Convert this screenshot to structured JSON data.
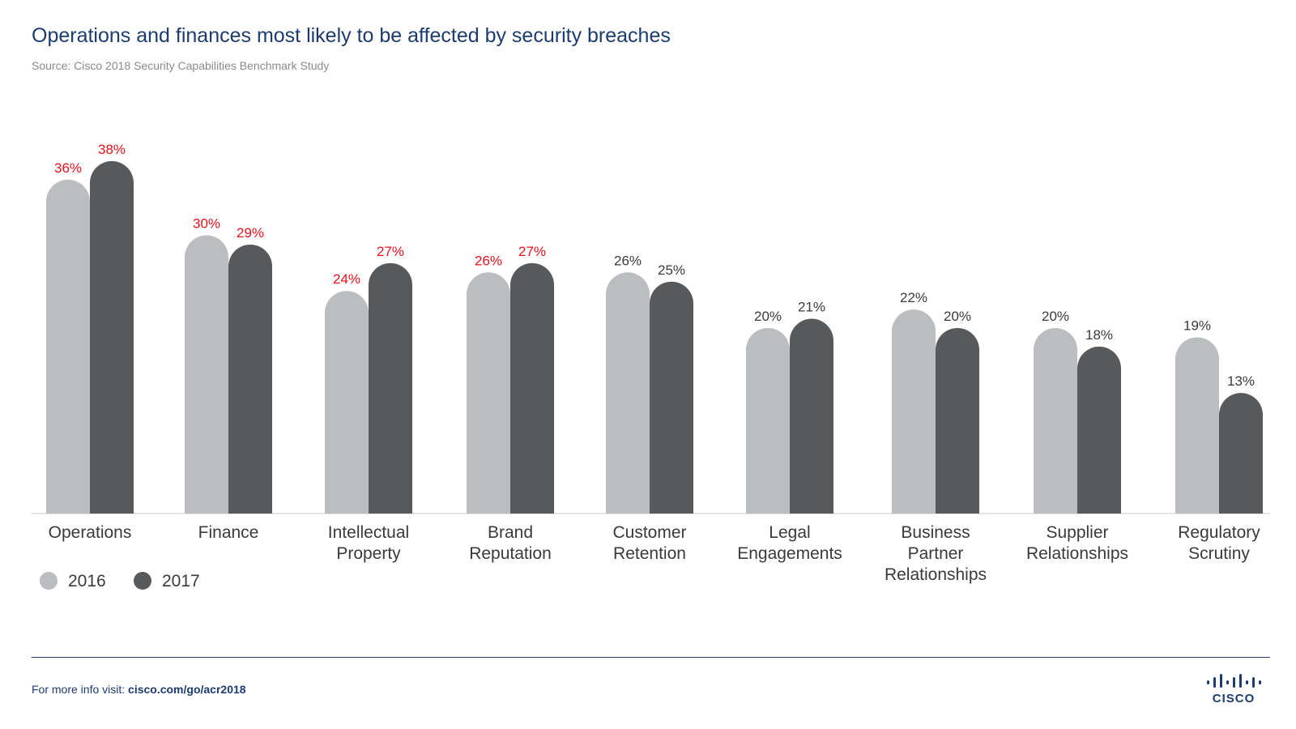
{
  "header": {
    "title": "Operations and finances most likely to be affected by security breaches",
    "source": "Source: Cisco 2018 Security Capabilities Benchmark Study"
  },
  "colors": {
    "series_2016": "#bcbdc0",
    "series_2017": "#58595b",
    "highlight_label": "#e8101a",
    "normal_label": "#3a3a3a",
    "axis": "#c8c8c8",
    "title": "#1d3c6e"
  },
  "chart_data": {
    "type": "bar",
    "title": "Operations and finances most likely to be affected by security breaches",
    "subtitle": "Source: Cisco 2018 Security Capabilities Benchmark Study",
    "xlabel": "",
    "ylabel": "",
    "ylim": [
      0,
      40
    ],
    "unit": "%",
    "grid": false,
    "legend_position": "bottom-left",
    "categories": [
      [
        "Operations"
      ],
      [
        "Finance"
      ],
      [
        "Intellectual",
        "Property"
      ],
      [
        "Brand",
        "Reputation"
      ],
      [
        "Customer",
        "Retention"
      ],
      [
        "Legal",
        "Engagements"
      ],
      [
        "Business",
        "Partner",
        "Relationships"
      ],
      [
        "Supplier",
        "Relationships"
      ],
      [
        "Regulatory",
        "Scrutiny"
      ]
    ],
    "series": [
      {
        "name": "2016",
        "values": [
          36,
          30,
          24,
          26,
          26,
          20,
          22,
          20,
          19
        ]
      },
      {
        "name": "2017",
        "values": [
          38,
          29,
          27,
          27,
          25,
          21,
          20,
          18,
          13
        ]
      }
    ],
    "highlighted_categories": [
      0,
      1,
      2,
      3
    ]
  },
  "footer": {
    "prefix": "For more info visit: ",
    "link": "cisco.com/go/acr2018",
    "logo_text": "CISCO"
  }
}
